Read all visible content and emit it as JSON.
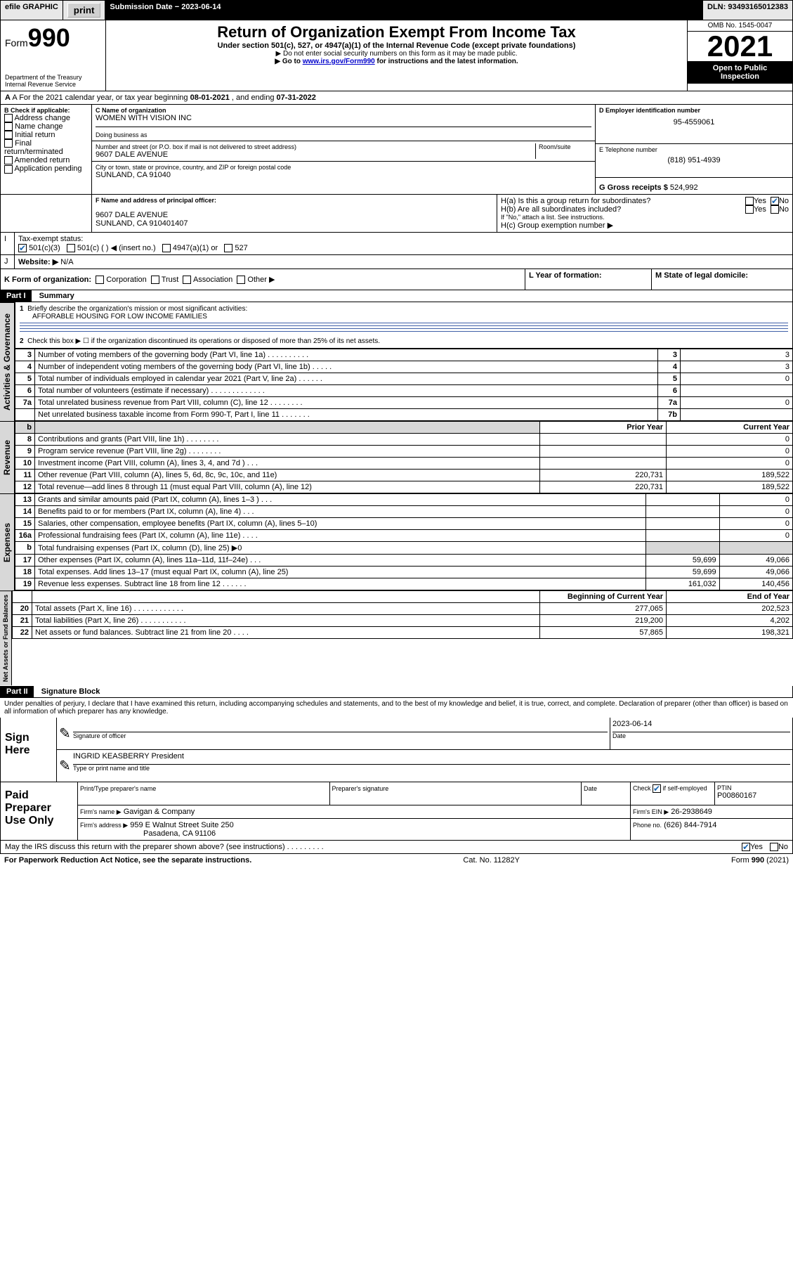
{
  "topbar": {
    "efile_label": "efile GRAPHIC",
    "print_label": "print",
    "sub_date_label": "Submission Date − 2023-06-14",
    "dln_label": "DLN: 93493165012383"
  },
  "header": {
    "form_label": "Form",
    "form_number": "990",
    "dept": "Department of the Treasury",
    "irs": "Internal Revenue Service",
    "title": "Return of Organization Exempt From Income Tax",
    "sub1": "Under section 501(c), 527, or 4947(a)(1) of the Internal Revenue Code (except private foundations)",
    "sub2": "▶ Do not enter social security numbers on this form as it may be made public.",
    "sub3_pre": "▶ Go to ",
    "sub3_link": "www.irs.gov/Form990",
    "sub3_post": " for instructions and the latest information.",
    "omb": "OMB No. 1545-0047",
    "year": "2021",
    "inspect1": "Open to Public",
    "inspect2": "Inspection"
  },
  "a_line": {
    "prefix": "A For the 2021 calendar year, or tax year beginning ",
    "begin": "08-01-2021",
    "mid": " , and ending ",
    "end": "07-31-2022"
  },
  "b_block": {
    "title": "B Check if applicable:",
    "items": [
      "Address change",
      "Name change",
      "Initial return",
      "Final return/terminated",
      "Amended return",
      "Application pending"
    ]
  },
  "c_block": {
    "label": "C Name of organization",
    "name": "WOMEN WITH VISION INC",
    "dba_label": "Doing business as",
    "addr_label": "Number and street (or P.O. box if mail is not delivered to street address)",
    "room_label": "Room/suite",
    "addr": "9607 DALE AVENUE",
    "city_label": "City or town, state or province, country, and ZIP or foreign postal code",
    "city": "SUNLAND, CA  91040"
  },
  "d_block": {
    "label": "D Employer identification number",
    "ein": "95-4559061"
  },
  "e_block": {
    "label": "E Telephone number",
    "phone": "(818) 951-4939"
  },
  "g_block": {
    "label": "G Gross receipts $",
    "amount": "524,992"
  },
  "f_block": {
    "label": "F Name and address of principal officer:",
    "line1": "9607 DALE AVENUE",
    "line2": "SUNLAND, CA  910401407"
  },
  "h_block": {
    "ha": "H(a)  Is this a group return for subordinates?",
    "hb": "H(b)  Are all subordinates included?",
    "note": "If \"No,\" attach a list. See instructions.",
    "hc": "H(c)  Group exemption number ▶",
    "yes": "Yes",
    "no": "No"
  },
  "i_block": {
    "label": "Tax-exempt status:",
    "opts": [
      "501(c)(3)",
      "501(c) (  ) ◀ (insert no.)",
      "4947(a)(1) or",
      "527"
    ]
  },
  "j_block": {
    "label": "Website: ▶",
    "value": "N/A"
  },
  "k_block": {
    "label": "K Form of organization:",
    "opts": [
      "Corporation",
      "Trust",
      "Association",
      "Other ▶"
    ]
  },
  "l_block": {
    "label": "L Year of formation:"
  },
  "m_block": {
    "label": "M State of legal domicile:"
  },
  "part1": {
    "hdr": "Part I",
    "title": "Summary"
  },
  "summary": {
    "line1_label": "Briefly describe the organization's mission or most significant activities:",
    "line1_text": "AFFORABLE HOUSING FOR LOW INCOME FAMILIES",
    "line2": "Check this box ▶ ☐  if the organization discontinued its operations or disposed of more than 25% of its net assets.",
    "col_prior": "Prior Year",
    "col_current": "Current Year",
    "col_boy": "Beginning of Current Year",
    "col_eoy": "End of Year"
  },
  "sections": {
    "gov": "Activities & Governance",
    "rev": "Revenue",
    "exp": "Expenses",
    "net": "Net Assets or Fund Balances"
  },
  "rows_gov": [
    {
      "n": "3",
      "t": "Number of voting members of the governing body (Part VI, line 1a)  .    .    .    .    .    .    .    .    .    .",
      "box": "3",
      "val": "3"
    },
    {
      "n": "4",
      "t": "Number of independent voting members of the governing body (Part VI, line 1b)  .    .    .    .    .",
      "box": "4",
      "val": "3"
    },
    {
      "n": "5",
      "t": "Total number of individuals employed in calendar year 2021 (Part V, line 2a)  .    .    .    .    .    .",
      "box": "5",
      "val": "0"
    },
    {
      "n": "6",
      "t": "Total number of volunteers (estimate if necessary)  .    .    .    .    .    .    .    .    .    .    .    .    .",
      "box": "6",
      "val": ""
    },
    {
      "n": "7a",
      "t": "Total unrelated business revenue from Part VIII, column (C), line 12   .    .    .    .    .    .    .    .",
      "box": "7a",
      "val": "0"
    },
    {
      "n": "",
      "t": "Net unrelated business taxable income from Form 990-T, Part I, line 11   .    .    .    .    .    .    .",
      "box": "7b",
      "val": ""
    }
  ],
  "rows_rev": [
    {
      "n": "8",
      "t": "Contributions and grants (Part VIII, line 1h)   .    .    .    .    .    .    .    .",
      "p": "",
      "c": "0"
    },
    {
      "n": "9",
      "t": "Program service revenue (Part VIII, line 2g)   .    .    .    .    .    .    .    .",
      "p": "",
      "c": "0"
    },
    {
      "n": "10",
      "t": "Investment income (Part VIII, column (A), lines 3, 4, and 7d )   .    .    .",
      "p": "",
      "c": "0"
    },
    {
      "n": "11",
      "t": "Other revenue (Part VIII, column (A), lines 5, 6d, 8c, 9c, 10c, and 11e)",
      "p": "220,731",
      "c": "189,522"
    },
    {
      "n": "12",
      "t": "Total revenue—add lines 8 through 11 (must equal Part VIII, column (A), line 12)",
      "p": "220,731",
      "c": "189,522"
    }
  ],
  "rows_exp": [
    {
      "n": "13",
      "t": "Grants and similar amounts paid (Part IX, column (A), lines 1–3 )   .    .    .",
      "p": "",
      "c": "0"
    },
    {
      "n": "14",
      "t": "Benefits paid to or for members (Part IX, column (A), line 4)   .    .    .",
      "p": "",
      "c": "0"
    },
    {
      "n": "15",
      "t": "Salaries, other compensation, employee benefits (Part IX, column (A), lines 5–10)",
      "p": "",
      "c": "0"
    },
    {
      "n": "16a",
      "t": "Professional fundraising fees (Part IX, column (A), line 11e)   .    .    .    .",
      "p": "",
      "c": "0"
    },
    {
      "n": "b",
      "t": "Total fundraising expenses (Part IX, column (D), line 25) ▶0",
      "p": "shade",
      "c": "shade"
    },
    {
      "n": "17",
      "t": "Other expenses (Part IX, column (A), lines 11a–11d, 11f–24e)   .    .    .",
      "p": "59,699",
      "c": "49,066"
    },
    {
      "n": "18",
      "t": "Total expenses. Add lines 13–17 (must equal Part IX, column (A), line 25)",
      "p": "59,699",
      "c": "49,066"
    },
    {
      "n": "19",
      "t": "Revenue less expenses. Subtract line 18 from line 12   .    .    .    .    .    .",
      "p": "161,032",
      "c": "140,456"
    }
  ],
  "rows_net": [
    {
      "n": "20",
      "t": "Total assets (Part X, line 16)   .    .    .    .    .    .    .    .    .    .    .    .",
      "p": "277,065",
      "c": "202,523"
    },
    {
      "n": "21",
      "t": "Total liabilities (Part X, line 26)  .    .    .    .    .    .    .    .    .    .    .",
      "p": "219,200",
      "c": "4,202"
    },
    {
      "n": "22",
      "t": "Net assets or fund balances. Subtract line 21 from line 20   .    .    .    .",
      "p": "57,865",
      "c": "198,321"
    }
  ],
  "part2": {
    "hdr": "Part II",
    "title": "Signature Block"
  },
  "penalties": "Under penalties of perjury, I declare that I have examined this return, including accompanying schedules and statements, and to the best of my knowledge and belief, it is true, correct, and complete. Declaration of preparer (other than officer) is based on all information of which preparer has any knowledge.",
  "sign": {
    "here": "Sign Here",
    "sig_label": "Signature of officer",
    "date_label": "Date",
    "date": "2023-06-14",
    "name": "INGRID KEASBERRY President",
    "name_label": "Type or print name and title"
  },
  "paid": {
    "here": "Paid Preparer Use Only",
    "col1": "Print/Type preparer's name",
    "col2": "Preparer's signature",
    "col3": "Date",
    "col4_pre": "Check",
    "col4_post": "if self-employed",
    "ptin_label": "PTIN",
    "ptin": "P00860167",
    "firm_name_label": "Firm's name   ▶",
    "firm_name": "Gavigan & Company",
    "firm_ein_label": "Firm's EIN ▶",
    "firm_ein": "26-2938649",
    "firm_addr_label": "Firm's address ▶",
    "firm_addr1": "959 E Walnut Street Suite 250",
    "firm_addr2": "Pasadena, CA  91106",
    "phone_label": "Phone no.",
    "phone": "(626) 844-7914"
  },
  "discuss": {
    "q": "May the IRS discuss this return with the preparer shown above? (see instructions)   .    .    .    .    .    .    .    .    .",
    "yes": "Yes",
    "no": "No"
  },
  "footer": {
    "left": "For Paperwork Reduction Act Notice, see the separate instructions.",
    "mid": "Cat. No. 11282Y",
    "right": "Form 990 (2021)"
  }
}
